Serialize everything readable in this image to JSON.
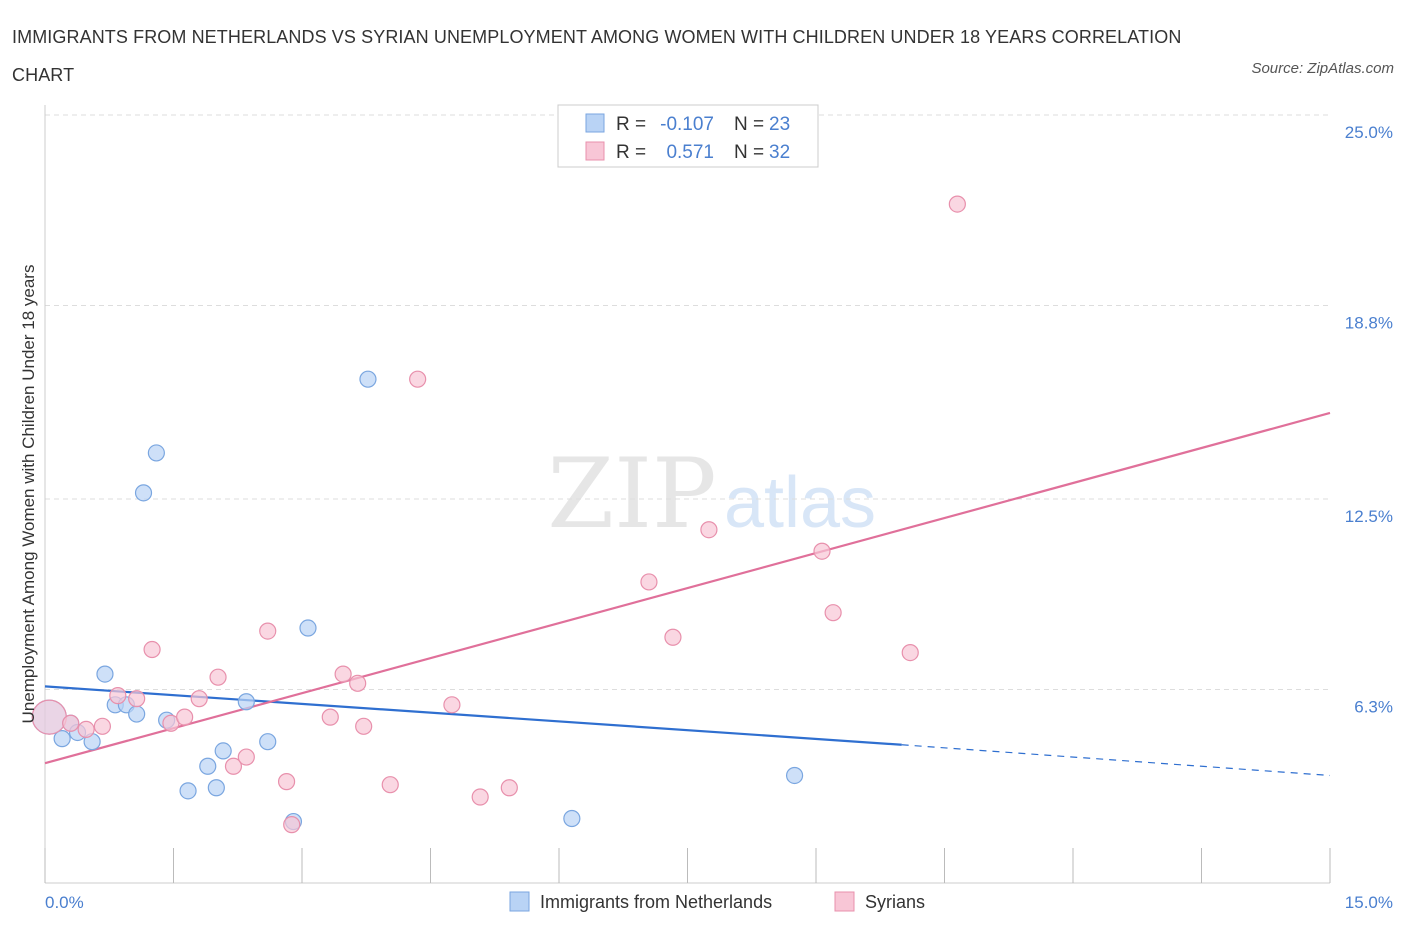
{
  "title": "IMMIGRANTS FROM NETHERLANDS VS SYRIAN UNEMPLOYMENT AMONG WOMEN WITH CHILDREN UNDER 18 YEARS CORRELATION CHART",
  "source": "Source: ZipAtlas.com",
  "watermark": {
    "zip": "ZIP",
    "atlas": "atlas"
  },
  "colors": {
    "blue_fill": "#b9d3f5",
    "blue_stroke": "#7aa6e0",
    "blue_line": "#2f6fd0",
    "pink_fill": "#f8c6d6",
    "pink_stroke": "#e890ac",
    "pink_line": "#e0709a",
    "tick_text": "#4a7fcf",
    "grid": "#dddddd"
  },
  "legend_top": {
    "rows": [
      {
        "r_label": "R =",
        "r_value": "-0.107",
        "n_label": "N =",
        "n_value": "23"
      },
      {
        "r_label": "R =",
        "r_value": "0.571",
        "n_label": "N =",
        "n_value": "32"
      }
    ]
  },
  "chart_data": {
    "type": "scatter",
    "title": "IMMIGRANTS FROM NETHERLANDS VS SYRIAN UNEMPLOYMENT AMONG WOMEN WITH CHILDREN UNDER 18 YEARS CORRELATION CHART",
    "xlabel": "",
    "ylabel": "Unemployment Among Women with Children Under 18 years",
    "xlim": [
      0,
      15
    ],
    "ylim": [
      0,
      25
    ],
    "x_tick_labels": {
      "min": "0.0%",
      "max": "15.0%"
    },
    "y_ticks": [
      6.3,
      12.5,
      18.8,
      25.0
    ],
    "y_tick_labels": [
      "6.3%",
      "12.5%",
      "18.8%",
      "25.0%"
    ],
    "grid": true,
    "legend_position": "bottom-center",
    "series": [
      {
        "name": "Immigrants from Netherlands",
        "r": -0.107,
        "n": 23,
        "points": [
          {
            "x": 0.05,
            "y": 5.4,
            "big": true
          },
          {
            "x": 0.2,
            "y": 4.7
          },
          {
            "x": 0.3,
            "y": 5.2
          },
          {
            "x": 0.38,
            "y": 4.9
          },
          {
            "x": 0.55,
            "y": 4.6
          },
          {
            "x": 0.7,
            "y": 6.8
          },
          {
            "x": 0.82,
            "y": 5.8
          },
          {
            "x": 0.95,
            "y": 5.8
          },
          {
            "x": 1.07,
            "y": 5.5
          },
          {
            "x": 1.15,
            "y": 12.7
          },
          {
            "x": 1.3,
            "y": 14.0
          },
          {
            "x": 1.42,
            "y": 5.3
          },
          {
            "x": 1.67,
            "y": 3.0
          },
          {
            "x": 1.9,
            "y": 3.8
          },
          {
            "x": 2.0,
            "y": 3.1
          },
          {
            "x": 2.08,
            "y": 4.3
          },
          {
            "x": 2.35,
            "y": 5.9
          },
          {
            "x": 2.6,
            "y": 4.6
          },
          {
            "x": 2.9,
            "y": 2.0
          },
          {
            "x": 3.07,
            "y": 8.3
          },
          {
            "x": 3.77,
            "y": 16.4
          },
          {
            "x": 6.15,
            "y": 2.1
          },
          {
            "x": 8.75,
            "y": 3.5
          }
        ],
        "trend": {
          "x0": 0,
          "y0": 6.4,
          "x1": 10.0,
          "y1": 4.5,
          "dash_to_x": 15.0,
          "dash_to_y": 3.5
        }
      },
      {
        "name": "Syrians",
        "r": 0.571,
        "n": 32,
        "points": [
          {
            "x": 0.05,
            "y": 5.4,
            "big": true
          },
          {
            "x": 0.48,
            "y": 5.0
          },
          {
            "x": 0.67,
            "y": 5.1
          },
          {
            "x": 0.85,
            "y": 6.1
          },
          {
            "x": 1.07,
            "y": 6.0
          },
          {
            "x": 1.25,
            "y": 7.6
          },
          {
            "x": 1.47,
            "y": 5.2
          },
          {
            "x": 1.63,
            "y": 5.4
          },
          {
            "x": 1.8,
            "y": 6.0
          },
          {
            "x": 2.02,
            "y": 6.7
          },
          {
            "x": 2.2,
            "y": 3.8
          },
          {
            "x": 2.35,
            "y": 4.1
          },
          {
            "x": 2.6,
            "y": 8.2
          },
          {
            "x": 2.82,
            "y": 3.3
          },
          {
            "x": 2.88,
            "y": 1.9
          },
          {
            "x": 3.33,
            "y": 5.4
          },
          {
            "x": 3.48,
            "y": 6.8
          },
          {
            "x": 3.65,
            "y": 6.5
          },
          {
            "x": 3.72,
            "y": 5.1
          },
          {
            "x": 4.03,
            "y": 3.2
          },
          {
            "x": 4.35,
            "y": 16.4
          },
          {
            "x": 4.75,
            "y": 5.8
          },
          {
            "x": 5.08,
            "y": 2.8
          },
          {
            "x": 5.42,
            "y": 3.1
          },
          {
            "x": 7.05,
            "y": 9.8
          },
          {
            "x": 7.33,
            "y": 8.0
          },
          {
            "x": 7.75,
            "y": 11.5
          },
          {
            "x": 9.07,
            "y": 10.8
          },
          {
            "x": 9.2,
            "y": 8.8
          },
          {
            "x": 10.1,
            "y": 7.5
          },
          {
            "x": 10.65,
            "y": 22.1
          },
          {
            "x": 0.3,
            "y": 5.2
          }
        ],
        "trend": {
          "x0": 0,
          "y0": 3.9,
          "x1": 15.0,
          "y1": 15.3
        }
      }
    ]
  }
}
